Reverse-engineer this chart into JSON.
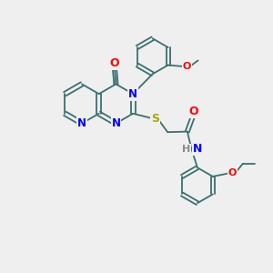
{
  "bg": "#efefef",
  "bc": "#3a7070",
  "nc": "#0000ff",
  "oc": "#ff0000",
  "sc": "#aaaa00",
  "hc": "#888888",
  "figsize": [
    3.0,
    3.0
  ],
  "dpi": 100,
  "xlim": [
    0,
    10
  ],
  "ylim": [
    0,
    10
  ]
}
